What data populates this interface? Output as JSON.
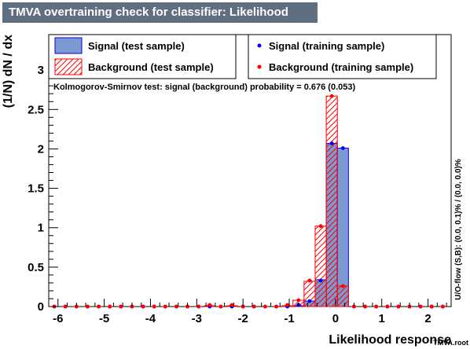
{
  "chart_data": {
    "type": "bar",
    "title": "TMVA overtraining check for classifier: Likelihood",
    "xlabel": "Likelihood response",
    "ylabel": "(1/N) dN / dx",
    "xlim": [
      -6.2,
      2.5
    ],
    "ylim": [
      0,
      3.45
    ],
    "xticks": [
      "-6",
      "-5",
      "-4",
      "-3",
      "-2",
      "-1",
      "0",
      "1",
      "2"
    ],
    "yticks": [
      "0",
      "0.5",
      "1",
      "1.5",
      "2",
      "2.5",
      "3"
    ],
    "bin_edges": [
      -6.2,
      -5.96,
      -5.72,
      -5.48,
      -5.24,
      -5.0,
      -4.76,
      -4.52,
      -4.28,
      -4.04,
      -3.8,
      -3.56,
      -3.32,
      -3.08,
      -2.84,
      -2.6,
      -2.36,
      -2.12,
      -1.88,
      -1.64,
      -1.4,
      -1.16,
      -0.92,
      -0.68,
      -0.44,
      -0.2,
      0.04,
      0.28,
      0.52,
      0.76,
      1.0,
      1.24,
      1.48,
      1.72,
      1.96,
      2.2,
      2.44
    ],
    "series": [
      {
        "name": "Signal (test sample)",
        "style": "filled",
        "values": [
          0,
          0,
          0,
          0,
          0,
          0,
          0,
          0,
          0,
          0,
          0,
          0,
          0,
          0,
          0,
          0,
          0,
          0,
          0,
          0,
          0,
          0,
          0.01,
          0.07,
          0.34,
          2.07,
          2.01,
          0,
          0,
          0,
          0,
          0,
          0,
          0,
          0,
          0
        ]
      },
      {
        "name": "Background (test sample)",
        "style": "hatched",
        "values": [
          0,
          0,
          0,
          0,
          0,
          0,
          0,
          0,
          0,
          0,
          0,
          0,
          0,
          0,
          0.01,
          0,
          0.01,
          0,
          0,
          0,
          0,
          0.01,
          0.08,
          0.32,
          1.02,
          2.67,
          0.26,
          0,
          0,
          0,
          0,
          0,
          0,
          0,
          0,
          0
        ]
      },
      {
        "name": "Signal (training sample)",
        "style": "points",
        "values": [
          0,
          0,
          0,
          0,
          0,
          0,
          0,
          0,
          0,
          0,
          0,
          0,
          0,
          0,
          0,
          0,
          0,
          0,
          0,
          0,
          0,
          0,
          0.02,
          0.07,
          0.33,
          2.07,
          2.01,
          0,
          0,
          0,
          0,
          0,
          0,
          0,
          0,
          0
        ]
      },
      {
        "name": "Background (training sample)",
        "style": "points",
        "values": [
          0,
          0,
          0,
          0,
          0,
          0,
          0,
          0,
          0,
          0,
          0,
          0,
          0,
          0,
          0.02,
          0,
          0.02,
          0,
          0,
          0,
          0,
          0.02,
          0.08,
          0.33,
          1.02,
          2.67,
          0.26,
          0,
          0,
          0,
          0,
          0,
          0,
          0,
          0,
          0
        ]
      }
    ],
    "annotation": "Kolmogorov-Smirnov test: signal (background) probability = 0.676 (0.053)",
    "side_label": "U/O-flow (S,B): (0.0, 0.1)% / (0.0, 0.0)%",
    "corner_label": "TMVA.root",
    "legend_position": "top",
    "colors": {
      "signal_fill": "#7d99d1",
      "signal_line": "#0000ee",
      "background_line": "#ff0000",
      "signal_point": "#0000ff",
      "background_point": "#ff0000",
      "title_bg": "#5f6e80"
    }
  }
}
